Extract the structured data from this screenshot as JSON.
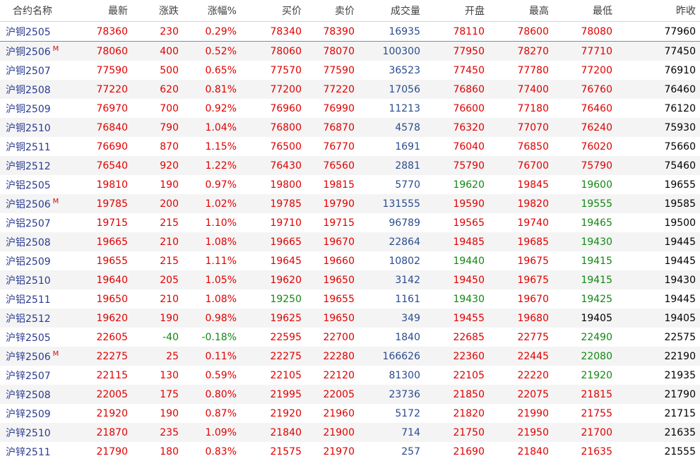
{
  "colors": {
    "up": "#e00000",
    "down": "#118811",
    "flat": "#000000",
    "volume": "#2a4c8f",
    "name": "#2a3b90"
  },
  "headers": [
    "合约名称",
    "最新",
    "涨跌",
    "涨幅%",
    "买价",
    "卖价",
    "成交量",
    "开盘",
    "最高",
    "最低",
    "昨收"
  ],
  "rows": [
    {
      "name": "沪铜2505",
      "main": "",
      "last": "78360",
      "change": "230",
      "pct": "0.29%",
      "bid": "78340",
      "ask": "78390",
      "volume": "16935",
      "open": "78110",
      "high": "78600",
      "low": "78080",
      "prev": "77960"
    },
    {
      "name": "沪铜2506",
      "main": "M",
      "last": "78060",
      "change": "400",
      "pct": "0.52%",
      "bid": "78060",
      "ask": "78070",
      "volume": "100300",
      "open": "77950",
      "high": "78270",
      "low": "77710",
      "prev": "77450"
    },
    {
      "name": "沪铜2507",
      "main": "",
      "last": "77590",
      "change": "500",
      "pct": "0.65%",
      "bid": "77570",
      "ask": "77590",
      "volume": "36523",
      "open": "77450",
      "high": "77780",
      "low": "77200",
      "prev": "76910"
    },
    {
      "name": "沪铜2508",
      "main": "",
      "last": "77220",
      "change": "620",
      "pct": "0.81%",
      "bid": "77200",
      "ask": "77220",
      "volume": "17056",
      "open": "76860",
      "high": "77400",
      "low": "76760",
      "prev": "76460"
    },
    {
      "name": "沪铜2509",
      "main": "",
      "last": "76970",
      "change": "700",
      "pct": "0.92%",
      "bid": "76960",
      "ask": "76990",
      "volume": "11213",
      "open": "76600",
      "high": "77180",
      "low": "76460",
      "prev": "76120"
    },
    {
      "name": "沪铜2510",
      "main": "",
      "last": "76840",
      "change": "790",
      "pct": "1.04%",
      "bid": "76800",
      "ask": "76870",
      "volume": "4578",
      "open": "76320",
      "high": "77070",
      "low": "76240",
      "prev": "75930"
    },
    {
      "name": "沪铜2511",
      "main": "",
      "last": "76690",
      "change": "870",
      "pct": "1.15%",
      "bid": "76500",
      "ask": "76770",
      "volume": "1691",
      "open": "76040",
      "high": "76850",
      "low": "76020",
      "prev": "75660"
    },
    {
      "name": "沪铜2512",
      "main": "",
      "last": "76540",
      "change": "920",
      "pct": "1.22%",
      "bid": "76430",
      "ask": "76560",
      "volume": "2881",
      "open": "75790",
      "high": "76700",
      "low": "75790",
      "prev": "75460"
    },
    {
      "name": "沪铝2505",
      "main": "",
      "last": "19810",
      "change": "190",
      "pct": "0.97%",
      "bid": "19800",
      "ask": "19815",
      "volume": "5770",
      "open": "19620",
      "high": "19845",
      "low": "19600",
      "prev": "19655"
    },
    {
      "name": "沪铝2506",
      "main": "M",
      "last": "19785",
      "change": "200",
      "pct": "1.02%",
      "bid": "19785",
      "ask": "19790",
      "volume": "131555",
      "open": "19590",
      "high": "19820",
      "low": "19555",
      "prev": "19585"
    },
    {
      "name": "沪铝2507",
      "main": "",
      "last": "19715",
      "change": "215",
      "pct": "1.10%",
      "bid": "19710",
      "ask": "19715",
      "volume": "96789",
      "open": "19565",
      "high": "19740",
      "low": "19465",
      "prev": "19500"
    },
    {
      "name": "沪铝2508",
      "main": "",
      "last": "19665",
      "change": "210",
      "pct": "1.08%",
      "bid": "19665",
      "ask": "19670",
      "volume": "22864",
      "open": "19485",
      "high": "19685",
      "low": "19430",
      "prev": "19445"
    },
    {
      "name": "沪铝2509",
      "main": "",
      "last": "19655",
      "change": "215",
      "pct": "1.11%",
      "bid": "19645",
      "ask": "19660",
      "volume": "10802",
      "open": "19440",
      "high": "19675",
      "low": "19415",
      "prev": "19445"
    },
    {
      "name": "沪铝2510",
      "main": "",
      "last": "19640",
      "change": "205",
      "pct": "1.05%",
      "bid": "19620",
      "ask": "19650",
      "volume": "3142",
      "open": "19450",
      "high": "19675",
      "low": "19415",
      "prev": "19430"
    },
    {
      "name": "沪铝2511",
      "main": "",
      "last": "19650",
      "change": "210",
      "pct": "1.08%",
      "bid": "19250",
      "ask": "19655",
      "volume": "1161",
      "open": "19430",
      "high": "19670",
      "low": "19425",
      "prev": "19445"
    },
    {
      "name": "沪铝2512",
      "main": "",
      "last": "19620",
      "change": "190",
      "pct": "0.98%",
      "bid": "19625",
      "ask": "19650",
      "volume": "349",
      "open": "19455",
      "high": "19680",
      "low": "19405",
      "prev": "19405"
    },
    {
      "name": "沪锌2505",
      "main": "",
      "last": "22605",
      "change": "-40",
      "pct": "-0.18%",
      "bid": "22595",
      "ask": "22700",
      "volume": "1840",
      "open": "22685",
      "high": "22775",
      "low": "22490",
      "prev": "22575"
    },
    {
      "name": "沪锌2506",
      "main": "M",
      "last": "22275",
      "change": "25",
      "pct": "0.11%",
      "bid": "22275",
      "ask": "22280",
      "volume": "166626",
      "open": "22360",
      "high": "22445",
      "low": "22080",
      "prev": "22190"
    },
    {
      "name": "沪锌2507",
      "main": "",
      "last": "22115",
      "change": "130",
      "pct": "0.59%",
      "bid": "22105",
      "ask": "22120",
      "volume": "81300",
      "open": "22105",
      "high": "22220",
      "low": "21920",
      "prev": "21935"
    },
    {
      "name": "沪锌2508",
      "main": "",
      "last": "22005",
      "change": "175",
      "pct": "0.80%",
      "bid": "21995",
      "ask": "22005",
      "volume": "23736",
      "open": "21850",
      "high": "22075",
      "low": "21815",
      "prev": "21790"
    },
    {
      "name": "沪锌2509",
      "main": "",
      "last": "21920",
      "change": "190",
      "pct": "0.87%",
      "bid": "21920",
      "ask": "21960",
      "volume": "5172",
      "open": "21820",
      "high": "21990",
      "low": "21755",
      "prev": "21715"
    },
    {
      "name": "沪锌2510",
      "main": "",
      "last": "21870",
      "change": "235",
      "pct": "1.09%",
      "bid": "21840",
      "ask": "21900",
      "volume": "714",
      "open": "21750",
      "high": "21950",
      "low": "21700",
      "prev": "21635"
    },
    {
      "name": "沪锌2511",
      "main": "",
      "last": "21790",
      "change": "180",
      "pct": "0.83%",
      "bid": "21575",
      "ask": "21970",
      "volume": "257",
      "open": "21690",
      "high": "21840",
      "low": "21635",
      "prev": "21555"
    }
  ]
}
